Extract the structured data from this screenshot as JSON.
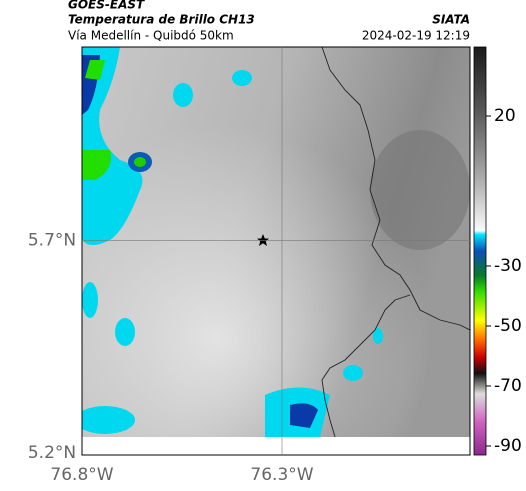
{
  "header": {
    "satellite": "GOES-EAST",
    "product": "Temperatura de Brillo CH13",
    "source": "SIATA",
    "route": "Vía Medellín - Quibdó 50km",
    "datetime": "2024-02-19 12:19"
  },
  "map": {
    "xlim": [
      -76.8,
      -75.83
    ],
    "ylim": [
      5.2,
      6.15
    ],
    "xticks": [
      {
        "value": -76.8,
        "label": "76.8°W"
      },
      {
        "value": -76.3,
        "label": "76.3°W"
      }
    ],
    "yticks": [
      {
        "value": 5.7,
        "label": "5.7°N"
      },
      {
        "value": 5.2,
        "label": "5.2°N"
      }
    ],
    "grid": true
  },
  "colorbar": {
    "clim": [
      -93,
      43
    ],
    "ticks": [
      20,
      -30,
      -50,
      -70,
      -90
    ]
  }
}
